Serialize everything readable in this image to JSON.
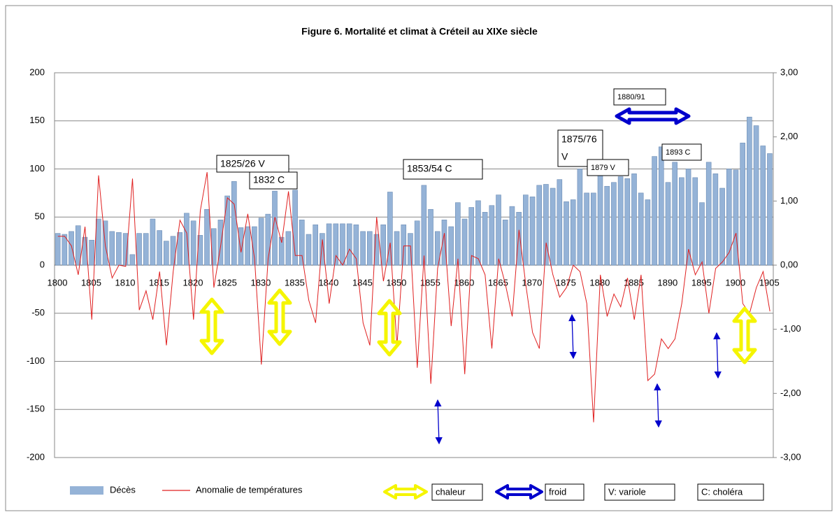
{
  "chart_data": {
    "type": "bar",
    "title": "Figure 6. Mortalité et climat à Créteil au XIXe siècle",
    "categories": [
      "1800",
      null,
      null,
      null,
      null,
      "1805",
      null,
      null,
      null,
      null,
      "1810",
      null,
      null,
      null,
      null,
      "1815",
      null,
      null,
      null,
      null,
      "1820",
      null,
      null,
      null,
      null,
      "1825",
      null,
      null,
      null,
      null,
      "1830",
      null,
      null,
      null,
      null,
      "1835",
      null,
      null,
      null,
      null,
      "1840",
      null,
      null,
      null,
      null,
      "1845",
      null,
      null,
      null,
      null,
      "1850",
      null,
      null,
      null,
      null,
      "1855",
      null,
      null,
      null,
      null,
      "1860",
      null,
      null,
      null,
      null,
      "1865",
      null,
      null,
      null,
      null,
      "1870",
      null,
      null,
      null,
      null,
      "1875",
      null,
      null,
      null,
      null,
      "1880",
      null,
      null,
      null,
      null,
      "1885",
      null,
      null,
      null,
      null,
      "1890",
      null,
      null,
      null,
      null,
      "1895",
      null,
      null,
      null,
      null,
      "1900",
      null,
      null,
      null,
      null,
      "1905"
    ],
    "series": [
      {
        "name": "Décès",
        "type": "bar",
        "color": "#95b3d7",
        "values": [
          33,
          32,
          35,
          41,
          29,
          26,
          48,
          46,
          35,
          34,
          33,
          11,
          33,
          33,
          48,
          36,
          25,
          30,
          34,
          54,
          46,
          31,
          58,
          38,
          47,
          72,
          87,
          39,
          40,
          40,
          49,
          53,
          77,
          29,
          35,
          78,
          47,
          32,
          42,
          33,
          43,
          43,
          43,
          43,
          42,
          35,
          35,
          32,
          42,
          76,
          35,
          42,
          33,
          46,
          83,
          58,
          35,
          47,
          40,
          65,
          48,
          60,
          67,
          55,
          62,
          73,
          47,
          61,
          55,
          73,
          71,
          83,
          84,
          80,
          89,
          66,
          68,
          100,
          75,
          75,
          97,
          82,
          86,
          92,
          90,
          95,
          75,
          68,
          113,
          123,
          86,
          107,
          91,
          100,
          91,
          65,
          107,
          95,
          80,
          100,
          99,
          127,
          154,
          145,
          124,
          116
        ]
      },
      {
        "name": "Anomalie de températures",
        "type": "line",
        "axis": "y2",
        "color": "#e02020",
        "values": [
          0.45,
          0.45,
          0.3,
          -0.15,
          0.6,
          -0.85,
          1.4,
          0.3,
          -0.2,
          0.0,
          -0.02,
          1.35,
          -0.7,
          -0.4,
          -0.85,
          -0.1,
          -1.25,
          -0.1,
          0.7,
          0.5,
          -0.85,
          0.85,
          1.45,
          -0.35,
          0.3,
          1.05,
          0.95,
          0.2,
          0.8,
          0.1,
          -1.55,
          0.1,
          0.75,
          0.35,
          1.15,
          0.15,
          0.15,
          -0.55,
          -0.9,
          0.4,
          -0.6,
          0.15,
          0.0,
          0.25,
          0.1,
          -0.9,
          -1.25,
          0.75,
          -0.25,
          0.35,
          -1.25,
          0.3,
          0.3,
          -1.6,
          0.15,
          -1.85,
          -0.05,
          0.5,
          -0.95,
          0.1,
          -1.7,
          0.15,
          0.1,
          -0.15,
          -1.3,
          0.1,
          -0.3,
          -0.8,
          0.55,
          -0.3,
          -1.05,
          -1.3,
          0.35,
          -0.15,
          -0.5,
          -0.35,
          0.0,
          -0.1,
          -0.6,
          -2.45,
          -0.15,
          -0.8,
          -0.45,
          -0.65,
          -0.2,
          -0.85,
          -0.15,
          -1.8,
          -1.7,
          -1.15,
          -1.3,
          -1.15,
          -0.6,
          0.25,
          -0.15,
          0.05,
          -0.75,
          -0.05,
          0.05,
          0.2,
          0.5,
          -0.6,
          -0.75,
          -0.35,
          -0.1,
          -0.72
        ]
      }
    ],
    "ylim": [
      -200,
      200
    ],
    "yticks": [
      -200,
      -150,
      -100,
      -50,
      0,
      50,
      100,
      150,
      200
    ],
    "y2lim": [
      -3,
      3
    ],
    "y2ticks": [
      {
        "value": -3,
        "label": "-3,00"
      },
      {
        "value": -2,
        "label": "-2,00"
      },
      {
        "value": -1,
        "label": "-1,00"
      },
      {
        "value": 0,
        "label": "0,00"
      },
      {
        "value": 1,
        "label": "1,00"
      },
      {
        "value": 2,
        "label": "2,00"
      },
      {
        "value": 3,
        "label": "3,00"
      }
    ],
    "grid": true,
    "annotations": [
      "1825/26 V",
      "1832 C",
      "1853/54 C",
      "1875/76",
      "V",
      "1879 V",
      "1893 C",
      "1880/91"
    ],
    "legend_notes": [
      "chaleur",
      "froid",
      "V: variole",
      "C: choléra"
    ]
  }
}
